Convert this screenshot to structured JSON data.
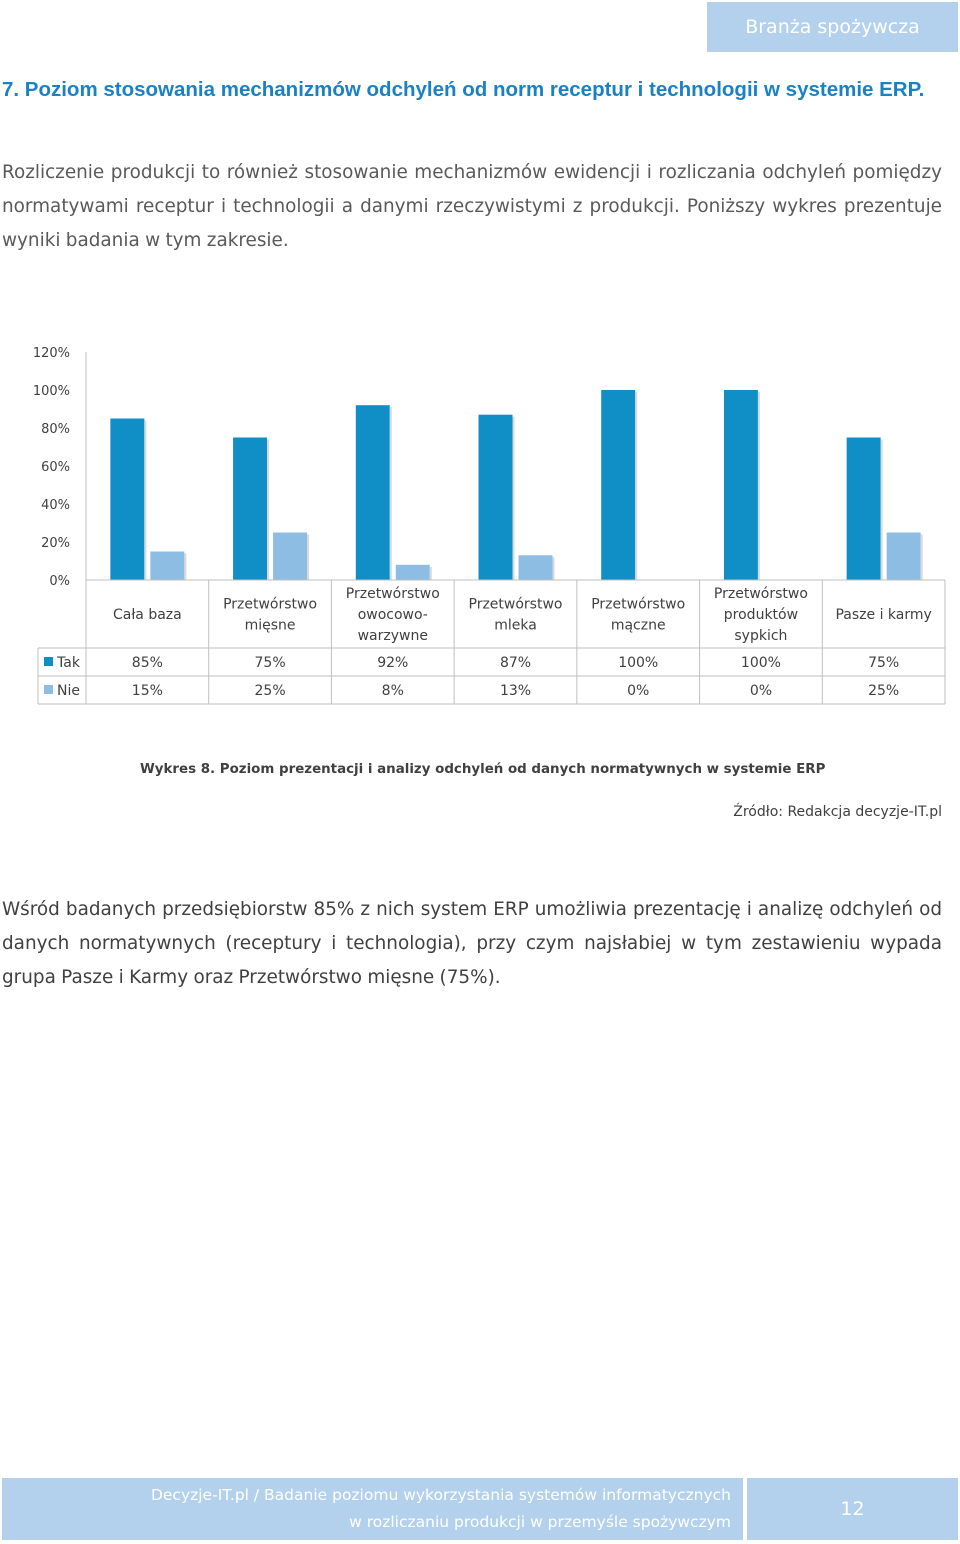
{
  "header": {
    "tag": "Branża spożywcza"
  },
  "section": {
    "heading": "7. Poziom stosowania mechanizmów odchyleń od norm receptur i technologii w systemie ERP.",
    "intro": "Rozliczenie produkcji to również stosowanie mechanizmów ewidencji i rozliczania odchyleń pomiędzy normatywami receptur i technologii a danymi rzeczywistymi z produkcji. Poniższy wykres prezentuje wyniki badania w tym zakresie.",
    "figure_caption": "Wykres 8. Poziom prezentacji i analizy odchyleń od danych normatywnych w systemie ERP",
    "source": "Źródło: Redakcja decyzje-IT.pl",
    "summary": "Wśród badanych przedsiębiorstw 85% z nich system ERP umożliwia prezentację i analizę odchyleń od danych normatywnych (receptury i technologia), przy czym najsłabiej w tym zestawieniu wypada grupa Pasze i Karmy oraz Przetwórstwo mięsne (75%)."
  },
  "chart_data": {
    "type": "bar",
    "categories": [
      [
        "Cała baza"
      ],
      [
        "Przetwórstwo",
        "mięsne"
      ],
      [
        "Przetwórstwo",
        "owocowo-",
        "warzywne"
      ],
      [
        "Przetwórstwo",
        "mleka"
      ],
      [
        "Przetwórstwo",
        "mączne"
      ],
      [
        "Przetwórstwo",
        "produktów",
        "sypkich"
      ],
      [
        "Pasze i karmy"
      ]
    ],
    "series": [
      {
        "name": "Tak",
        "values": [
          85,
          75,
          92,
          87,
          100,
          100,
          75
        ],
        "labels": [
          "85%",
          "75%",
          "92%",
          "87%",
          "100%",
          "100%",
          "75%"
        ],
        "color": "#0f8fc6"
      },
      {
        "name": "Nie",
        "values": [
          15,
          25,
          8,
          13,
          0,
          0,
          25
        ],
        "labels": [
          "15%",
          "25%",
          "8%",
          "13%",
          "0%",
          "0%",
          "25%"
        ],
        "color": "#8ebde3"
      }
    ],
    "y_ticks": [
      "0%",
      "20%",
      "40%",
      "60%",
      "80%",
      "100%",
      "120%"
    ],
    "ylim": [
      0,
      120
    ],
    "data_table": true,
    "grid": false
  },
  "footer": {
    "line1": "Decyzje-IT.pl / Badanie poziomu wykorzystania systemów informatycznych",
    "line2": "w rozliczaniu produkcji w przemyśle spożywczym",
    "page_number": "12"
  }
}
